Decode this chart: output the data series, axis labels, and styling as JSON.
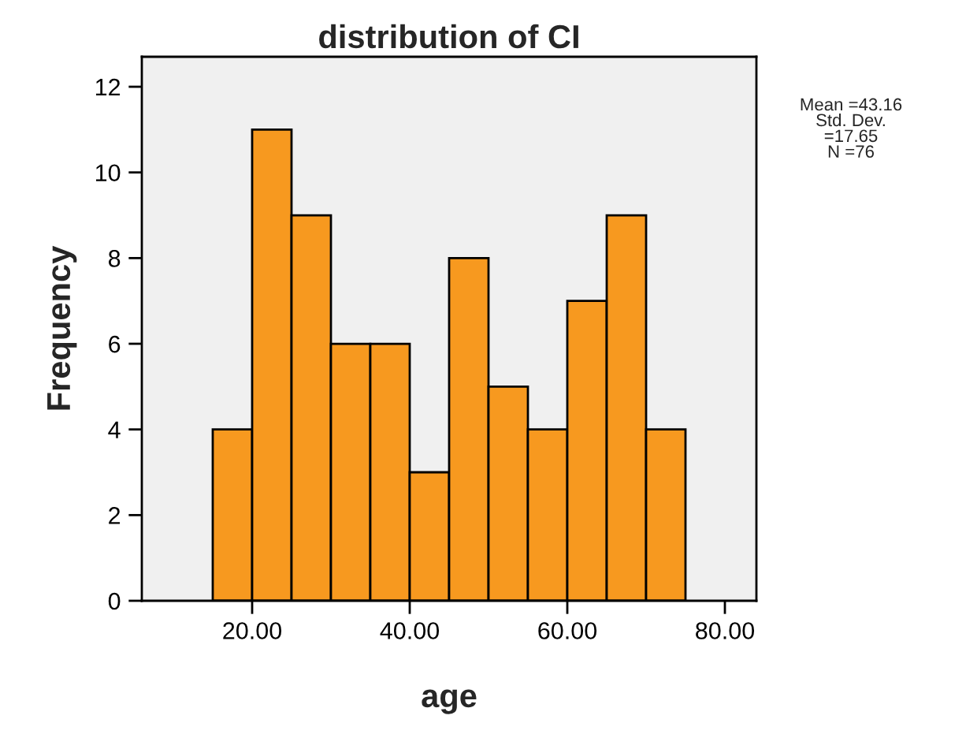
{
  "chart_data": {
    "type": "histogram",
    "title": "distribution of CI",
    "xlabel": "age",
    "ylabel": "Frequency",
    "bins": [
      15,
      20,
      25,
      30,
      35,
      40,
      45,
      50,
      55,
      60,
      65,
      70,
      75
    ],
    "values": [
      4,
      11,
      9,
      6,
      6,
      3,
      8,
      5,
      4,
      7,
      9,
      4
    ],
    "color": "#f7991f",
    "xlim": [
      6,
      84
    ],
    "xticks": [
      {
        "value": 20,
        "label": "20.00"
      },
      {
        "value": 40,
        "label": "40.00"
      },
      {
        "value": 60,
        "label": "60.00"
      },
      {
        "value": 80,
        "label": "80.00"
      }
    ],
    "ylim": [
      0,
      12.7
    ],
    "yticks": [
      0,
      2,
      4,
      6,
      8,
      10,
      12
    ],
    "annotations": [
      "Mean =43.16\nStd. Dev.\n=17.65\nN =76"
    ],
    "grid": false,
    "legend": false
  }
}
